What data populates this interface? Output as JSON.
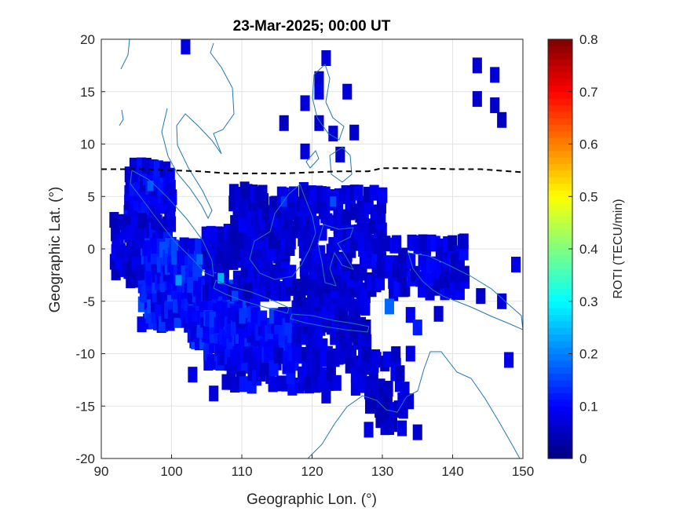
{
  "chart_data": {
    "type": "heatmap",
    "title": "23-Mar-2025; 00:00 UT",
    "xlabel": "Geographic Lon. (°)",
    "ylabel": "Geographic Lat. (°)",
    "xlim": [
      90,
      150
    ],
    "ylim": [
      -20,
      20
    ],
    "xticks": [
      90,
      100,
      110,
      120,
      130,
      140,
      150
    ],
    "yticks": [
      -20,
      -15,
      -10,
      -5,
      0,
      5,
      10,
      15,
      20
    ],
    "grid": true,
    "colormap": "jet",
    "colorbar": {
      "label": "ROTI (TECU/min)",
      "range": [
        0,
        0.8
      ],
      "ticks": [
        0,
        0.1,
        0.2,
        0.3,
        0.4,
        0.5,
        0.6,
        0.7,
        0.8
      ]
    },
    "overlays": {
      "coastline_color": "#1f77b4",
      "dashed_line": {
        "style": "dashed",
        "color": "#000000",
        "points": [
          [
            90,
            7.6
          ],
          [
            96,
            7.6
          ],
          [
            100,
            7.5
          ],
          [
            104,
            7.4
          ],
          [
            108,
            7.2
          ],
          [
            112,
            7.2
          ],
          [
            116,
            7.2
          ],
          [
            120,
            7.3
          ],
          [
            124,
            7.4
          ],
          [
            128,
            7.4
          ],
          [
            130,
            7.7
          ],
          [
            134,
            7.7
          ],
          [
            140,
            7.6
          ],
          [
            144,
            7.6
          ],
          [
            148,
            7.4
          ],
          [
            150,
            7.3
          ]
        ]
      }
    },
    "cell_size_deg": [
      1.0,
      1.5
    ],
    "isolated_cells": [
      [
        102,
        19.3,
        0.08
      ],
      [
        122,
        18.2,
        0.07
      ],
      [
        121,
        16.2,
        0.06
      ],
      [
        121,
        15.0,
        0.08
      ],
      [
        119,
        13.9,
        0.07
      ],
      [
        125,
        15.0,
        0.07
      ],
      [
        116,
        12.0,
        0.05
      ],
      [
        121,
        12.0,
        0.06
      ],
      [
        123,
        11.0,
        0.07
      ],
      [
        126,
        11.1,
        0.06
      ],
      [
        119,
        9.3,
        0.07
      ],
      [
        124,
        9.0,
        0.06
      ],
      [
        143.5,
        17.5,
        0.06
      ],
      [
        146,
        16.6,
        0.07
      ],
      [
        143.5,
        14.3,
        0.06
      ],
      [
        146,
        13.7,
        0.06
      ],
      [
        147,
        12.3,
        0.05
      ],
      [
        103,
        -12.0,
        0.08
      ],
      [
        106,
        -13.8,
        0.07
      ],
      [
        131,
        -5.5,
        0.18
      ],
      [
        134,
        -6.3,
        0.09
      ],
      [
        135,
        -7.5,
        0.12
      ],
      [
        134,
        -10.0,
        0.08
      ],
      [
        148,
        -10.6,
        0.08
      ],
      [
        138,
        -6.2,
        0.06
      ],
      [
        144,
        -4.5,
        0.06
      ],
      [
        147,
        -5.0,
        0.07
      ],
      [
        149,
        -1.5,
        0.08
      ],
      [
        131,
        -17.0,
        0.06
      ],
      [
        135,
        -17.5,
        0.06
      ],
      [
        127,
        -13.0,
        0.08
      ],
      [
        122,
        -14.0,
        0.07
      ]
    ],
    "blobs": [
      {
        "lon": [
          94,
          100
        ],
        "lat": [
          -3,
          8
        ],
        "density": 0.9,
        "mean": 0.09
      },
      {
        "lon": [
          96,
          104
        ],
        "lat": [
          -7,
          1
        ],
        "density": 0.9,
        "mean": 0.12
      },
      {
        "lon": [
          103,
          112
        ],
        "lat": [
          -9,
          -3
        ],
        "density": 0.9,
        "mean": 0.12
      },
      {
        "lon": [
          105,
          118
        ],
        "lat": [
          -11,
          -6
        ],
        "density": 0.85,
        "mean": 0.11
      },
      {
        "lon": [
          108,
          118
        ],
        "lat": [
          -13,
          -10
        ],
        "density": 0.6,
        "mean": 0.09
      },
      {
        "lon": [
          105,
          117
        ],
        "lat": [
          -4,
          2
        ],
        "density": 0.7,
        "mean": 0.07
      },
      {
        "lon": [
          109,
          120
        ],
        "lat": [
          0,
          6
        ],
        "density": 0.7,
        "mean": 0.07
      },
      {
        "lon": [
          118,
          128
        ],
        "lat": [
          -10,
          -3
        ],
        "density": 0.7,
        "mean": 0.07
      },
      {
        "lon": [
          119,
          130
        ],
        "lat": [
          -3,
          6
        ],
        "density": 0.65,
        "mean": 0.07
      },
      {
        "lon": [
          128,
          142
        ],
        "lat": [
          -4,
          1
        ],
        "density": 0.6,
        "mean": 0.08
      },
      {
        "lon": [
          92,
          96
        ],
        "lat": [
          -2,
          3
        ],
        "density": 0.7,
        "mean": 0.07
      },
      {
        "lon": [
          118,
          133
        ],
        "lat": [
          -13,
          -10
        ],
        "density": 0.45,
        "mean": 0.07
      },
      {
        "lon": [
          128,
          134
        ],
        "lat": [
          -17,
          -13
        ],
        "density": 0.4,
        "mean": 0.06
      }
    ],
    "hotspots": [
      [
        107,
        -2.8,
        0.24
      ],
      [
        101,
        -3.0,
        0.22
      ],
      [
        104,
        -1.0,
        0.18
      ],
      [
        97,
        6.0,
        0.17
      ],
      [
        123,
        4.5,
        0.16
      ],
      [
        116,
        4.5,
        0.14
      ],
      [
        109,
        -4.5,
        0.15
      ],
      [
        104,
        -8.0,
        0.14
      ]
    ]
  }
}
